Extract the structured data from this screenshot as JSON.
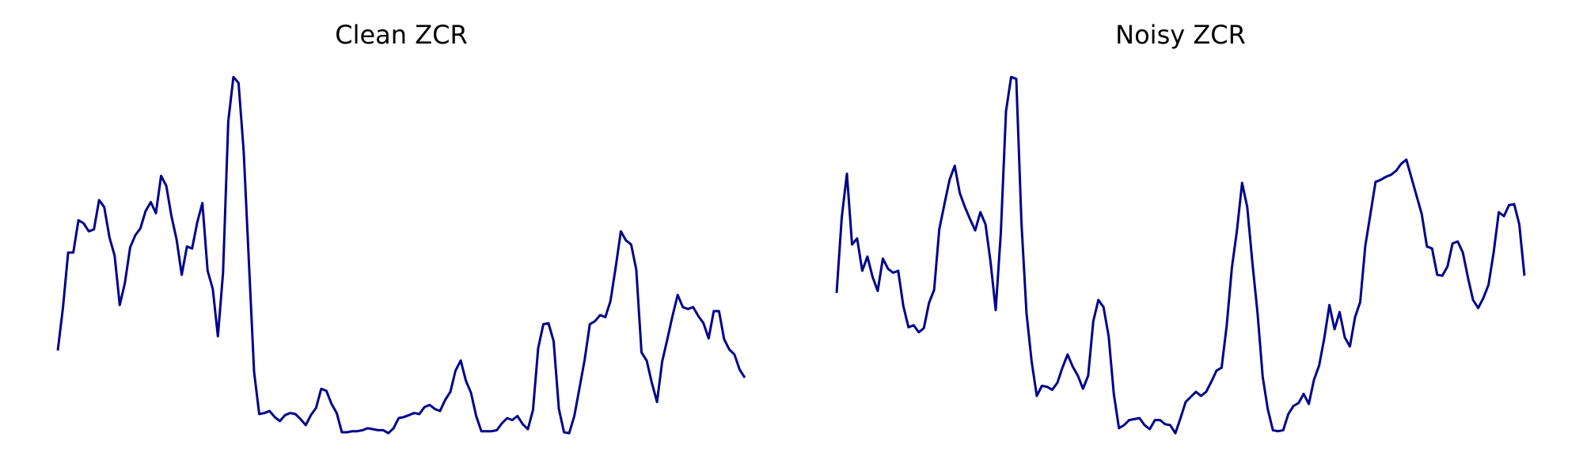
{
  "chart_data": [
    {
      "type": "line",
      "title": "Clean ZCR",
      "color": "#00008b",
      "ylim": [
        0,
        0.4
      ],
      "values": [
        0.103,
        0.145,
        0.2,
        0.2,
        0.232,
        0.229,
        0.221,
        0.223,
        0.252,
        0.245,
        0.215,
        0.197,
        0.148,
        0.17,
        0.205,
        0.217,
        0.224,
        0.241,
        0.25,
        0.239,
        0.276,
        0.266,
        0.236,
        0.213,
        0.178,
        0.206,
        0.204,
        0.23,
        0.249,
        0.182,
        0.164,
        0.117,
        0.18,
        0.33,
        0.374,
        0.368,
        0.3,
        0.19,
        0.082,
        0.04,
        0.041,
        0.043,
        0.037,
        0.033,
        0.039,
        0.041,
        0.04,
        0.035,
        0.029,
        0.039,
        0.046,
        0.065,
        0.063,
        0.05,
        0.041,
        0.022,
        0.022,
        0.023,
        0.023,
        0.024,
        0.026,
        0.025,
        0.024,
        0.024,
        0.021,
        0.026,
        0.036,
        0.037,
        0.039,
        0.041,
        0.04,
        0.047,
        0.049,
        0.045,
        0.043,
        0.054,
        0.062,
        0.083,
        0.093,
        0.073,
        0.061,
        0.038,
        0.023,
        0.023,
        0.023,
        0.024,
        0.031,
        0.036,
        0.034,
        0.038,
        0.03,
        0.025,
        0.044,
        0.105,
        0.129,
        0.13,
        0.112,
        0.045,
        0.022,
        0.021,
        0.038,
        0.066,
        0.094,
        0.129,
        0.132,
        0.138,
        0.136,
        0.152,
        0.185,
        0.221,
        0.212,
        0.208,
        0.183,
        0.101,
        0.093,
        0.071,
        0.052,
        0.092,
        0.114,
        0.137,
        0.158,
        0.146,
        0.144,
        0.146,
        0.137,
        0.13,
        0.115,
        0.142,
        0.142,
        0.114,
        0.104,
        0.099,
        0.084,
        0.076
      ]
    },
    {
      "type": "line",
      "title": "Noisy ZCR",
      "color": "#00008b",
      "ylim": [
        0,
        0.4
      ],
      "values": [
        0.16,
        0.235,
        0.278,
        0.208,
        0.214,
        0.182,
        0.196,
        0.176,
        0.162,
        0.194,
        0.184,
        0.18,
        0.182,
        0.147,
        0.126,
        0.128,
        0.121,
        0.125,
        0.15,
        0.163,
        0.223,
        0.248,
        0.272,
        0.286,
        0.259,
        0.245,
        0.233,
        0.222,
        0.24,
        0.228,
        0.19,
        0.143,
        0.22,
        0.34,
        0.374,
        0.372,
        0.23,
        0.14,
        0.092,
        0.058,
        0.068,
        0.067,
        0.064,
        0.071,
        0.086,
        0.099,
        0.087,
        0.078,
        0.065,
        0.078,
        0.132,
        0.153,
        0.146,
        0.117,
        0.06,
        0.026,
        0.029,
        0.034,
        0.035,
        0.036,
        0.029,
        0.025,
        0.034,
        0.034,
        0.03,
        0.029,
        0.021,
        0.036,
        0.052,
        0.057,
        0.062,
        0.058,
        0.062,
        0.072,
        0.083,
        0.086,
        0.128,
        0.185,
        0.222,
        0.269,
        0.245,
        0.19,
        0.14,
        0.077,
        0.045,
        0.024,
        0.023,
        0.024,
        0.04,
        0.048,
        0.051,
        0.06,
        0.05,
        0.074,
        0.088,
        0.115,
        0.148,
        0.124,
        0.141,
        0.116,
        0.107,
        0.136,
        0.151,
        0.207,
        0.238,
        0.27,
        0.272,
        0.275,
        0.277,
        0.281,
        0.288,
        0.292,
        0.274,
        0.256,
        0.238,
        0.206,
        0.204,
        0.178,
        0.177,
        0.186,
        0.209,
        0.211,
        0.2,
        0.175,
        0.153,
        0.145,
        0.155,
        0.168,
        0.2,
        0.24,
        0.236,
        0.247,
        0.248,
        0.228,
        0.177
      ]
    }
  ]
}
